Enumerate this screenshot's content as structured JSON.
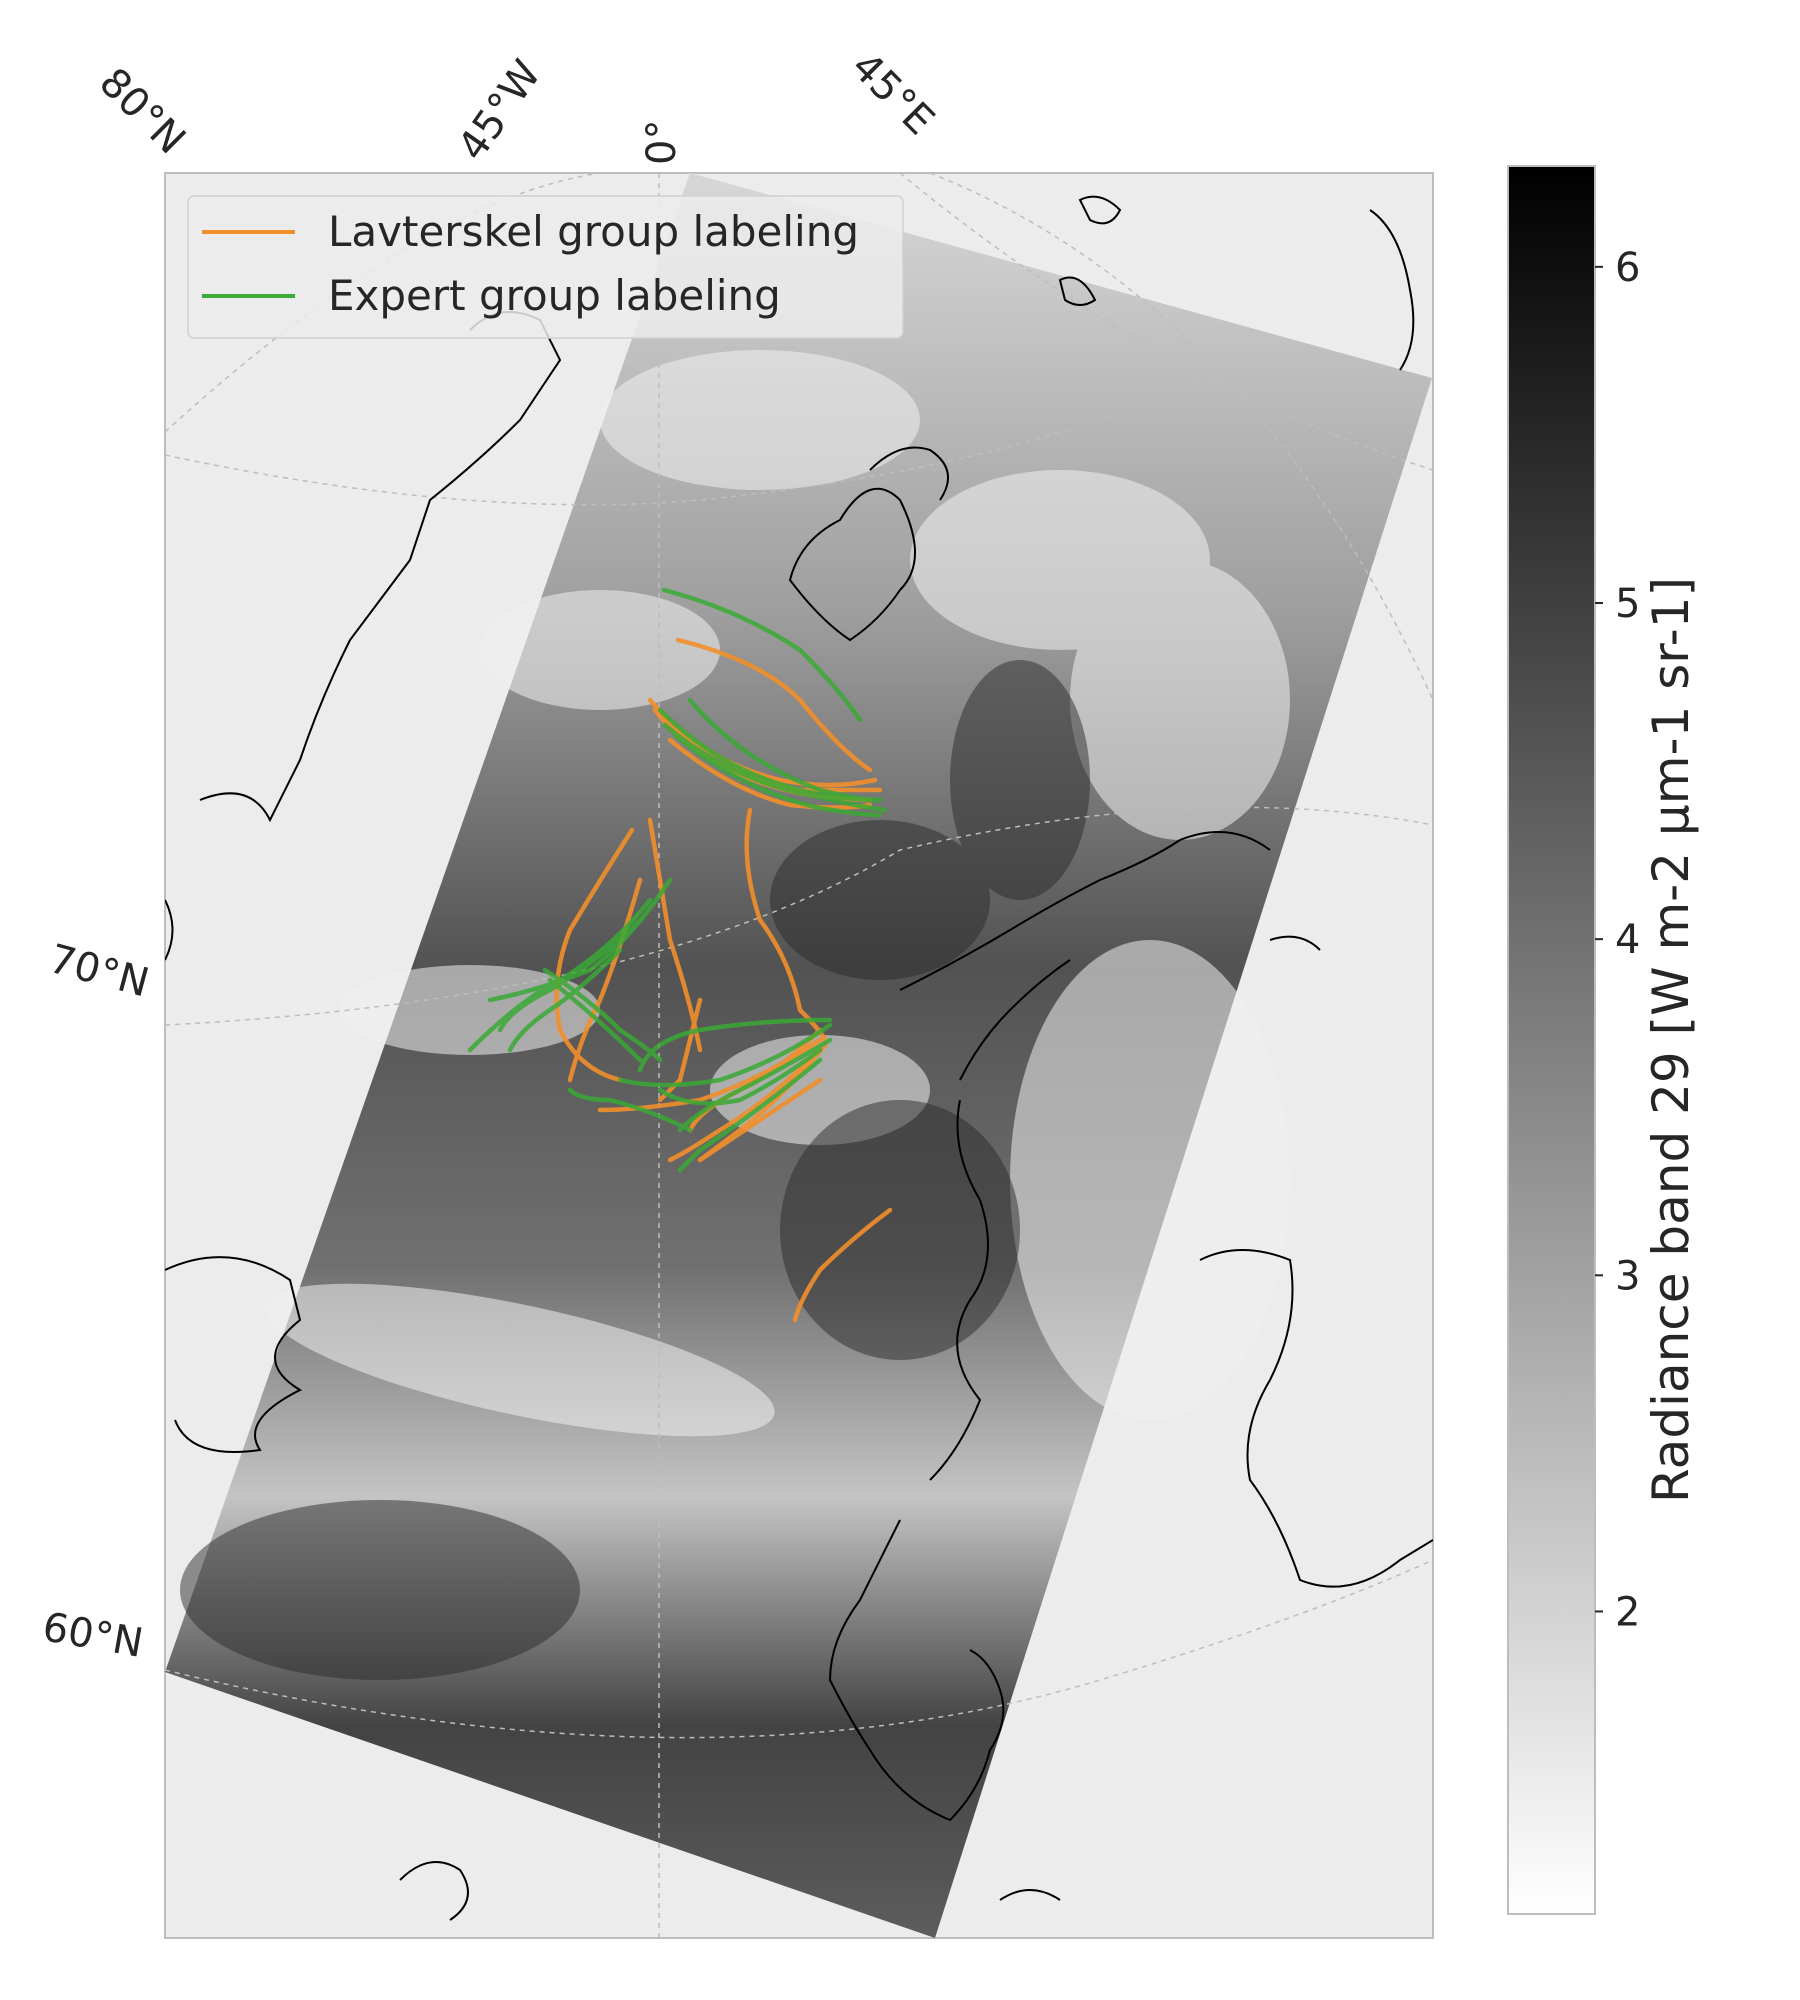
{
  "map": {
    "background_color": "#ececec",
    "coastline_color": "#000000",
    "gridline_color": "#bdbdbd",
    "lon_labels": [
      "80°N",
      "45°W",
      "0°",
      "45°E"
    ],
    "lat_labels": [
      "70°N",
      "60°N"
    ]
  },
  "legend": {
    "entries": [
      {
        "label": "Lavterskel group labeling",
        "color": "#f28e2b"
      },
      {
        "label": "Expert group labeling",
        "color": "#3aaa35"
      }
    ]
  },
  "colorbar": {
    "label": "Radiance band 29 [W m-2 µm-1 sr-1]",
    "ticks": [
      "2",
      "3",
      "4",
      "5",
      "6"
    ],
    "range": [
      1.1,
      6.3
    ],
    "colormap": "gray_r"
  },
  "chart_data": {
    "type": "map",
    "series": [
      {
        "name": "Lavterskel group labeling",
        "color": "#f28e2b"
      },
      {
        "name": "Expert group labeling",
        "color": "#3aaa35"
      }
    ]
  }
}
